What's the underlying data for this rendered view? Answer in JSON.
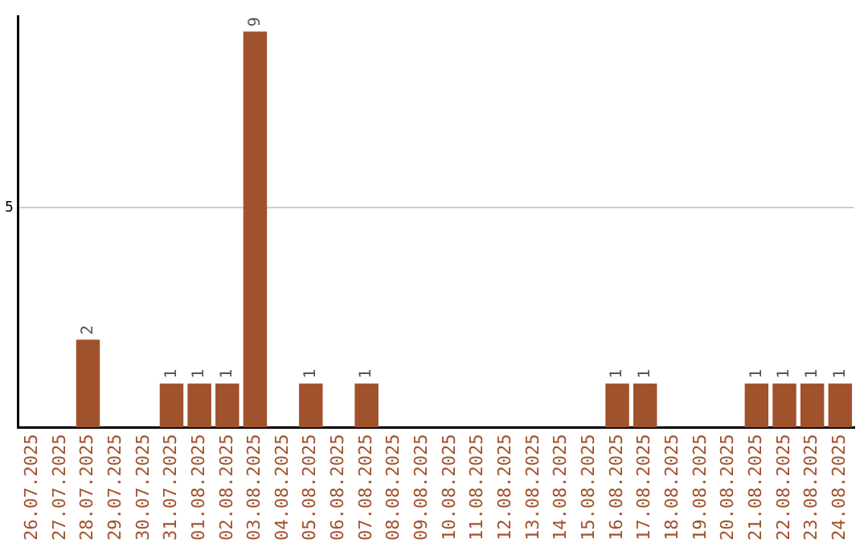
{
  "chart_data": {
    "type": "bar",
    "categories": [
      "26.07.2025",
      "27.07.2025",
      "28.07.2025",
      "29.07.2025",
      "30.07.2025",
      "31.07.2025",
      "01.08.2025",
      "02.08.2025",
      "03.08.2025",
      "04.08.2025",
      "05.08.2025",
      "06.08.2025",
      "07.08.2025",
      "08.08.2025",
      "09.08.2025",
      "10.08.2025",
      "11.08.2025",
      "12.08.2025",
      "13.08.2025",
      "14.08.2025",
      "15.08.2025",
      "16.08.2025",
      "17.08.2025",
      "18.08.2025",
      "19.08.2025",
      "20.08.2025",
      "21.08.2025",
      "22.08.2025",
      "23.08.2025",
      "24.08.2025"
    ],
    "values": [
      0,
      0,
      2,
      0,
      0,
      1,
      1,
      1,
      9,
      0,
      1,
      0,
      1,
      0,
      0,
      0,
      0,
      0,
      0,
      0,
      0,
      1,
      1,
      0,
      0,
      0,
      1,
      1,
      1,
      1
    ],
    "value_labels": [
      null,
      null,
      "2",
      null,
      null,
      "1",
      "1",
      "1",
      "9",
      null,
      "1",
      null,
      "1",
      null,
      null,
      null,
      null,
      null,
      null,
      null,
      null,
      "1",
      "1",
      null,
      null,
      null,
      "1",
      "1",
      "1",
      "1"
    ],
    "color": "#a0522d",
    "ylim": [
      0,
      9.35
    ],
    "yticks": [
      5
    ],
    "grid": "y",
    "legend": false
  }
}
